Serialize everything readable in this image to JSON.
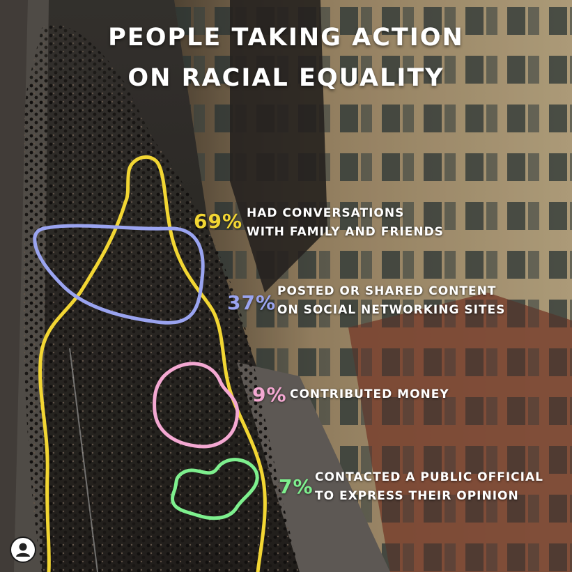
{
  "title": {
    "line1": "PEOPLE TAKING ACTION",
    "line2": "ON RACIAL EQUALITY"
  },
  "chart_data": {
    "type": "annotated-photo",
    "title": "PEOPLE TAKING ACTION ON RACIAL EQUALITY",
    "unit": "%",
    "items": [
      {
        "value": 69,
        "value_label": "69%",
        "label_line1": "HAD CONVERSATIONS",
        "label_line2": "WITH FAMILY AND FRIENDS",
        "color": "#f2d633"
      },
      {
        "value": 37,
        "value_label": "37%",
        "label_line1": "POSTED OR SHARED CONTENT",
        "label_line2": "ON SOCIAL NETWORKING SITES",
        "color": "#9aa4f0"
      },
      {
        "value": 9,
        "value_label": "9%",
        "label_line1": "CONTRIBUTED MONEY",
        "label_line2": "",
        "color": "#f4a8d2"
      },
      {
        "value": 7,
        "value_label": "7%",
        "label_line1": "CONTACTED A PUBLIC OFFICIAL",
        "label_line2": "TO EXPRESS THEIR OPINION",
        "color": "#7ef08e"
      }
    ]
  },
  "icons": {
    "profile": "user-avatar-icon"
  }
}
